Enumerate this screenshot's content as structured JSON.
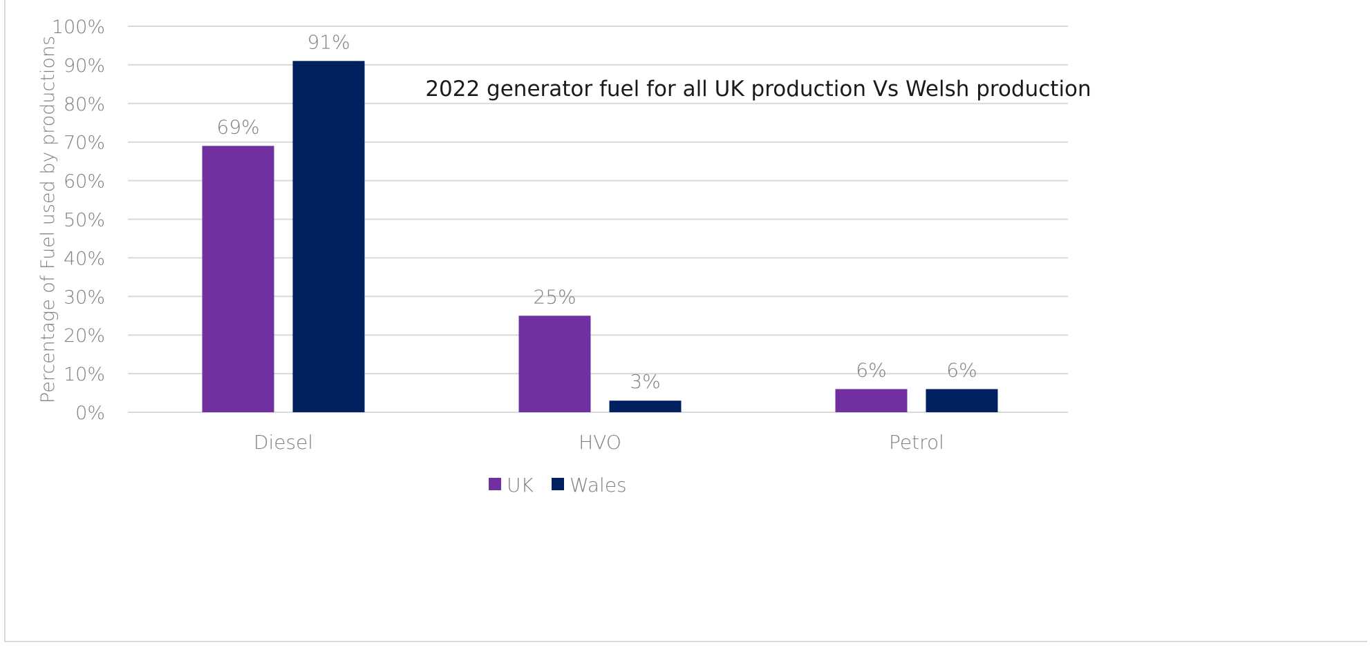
{
  "chart_data": {
    "type": "bar",
    "title": "2022 generator fuel for all UK production Vs Welsh production",
    "xlabel": "",
    "ylabel": "Percentage of Fuel used by productions",
    "categories": [
      "Diesel",
      "HVO",
      "Petrol"
    ],
    "series": [
      {
        "name": "UK",
        "values": [
          69,
          25,
          6
        ],
        "labels": [
          "69%",
          "25%",
          "6%"
        ],
        "color": "#7030a0"
      },
      {
        "name": "Wales",
        "values": [
          91,
          3,
          6
        ],
        "labels": [
          "91%",
          "3%",
          "6%"
        ],
        "color": "#002060"
      }
    ],
    "ylim": [
      0,
      100
    ],
    "yticks": [
      0,
      10,
      20,
      30,
      40,
      50,
      60,
      70,
      80,
      90,
      100
    ],
    "ytick_labels": [
      "0%",
      "10%",
      "20%",
      "30%",
      "40%",
      "50%",
      "60%",
      "70%",
      "80%",
      "90%",
      "100%"
    ],
    "grid": true,
    "legend": "bottom",
    "gridline_color": "#d9d9d9",
    "label_color": "#7f7f7f"
  }
}
